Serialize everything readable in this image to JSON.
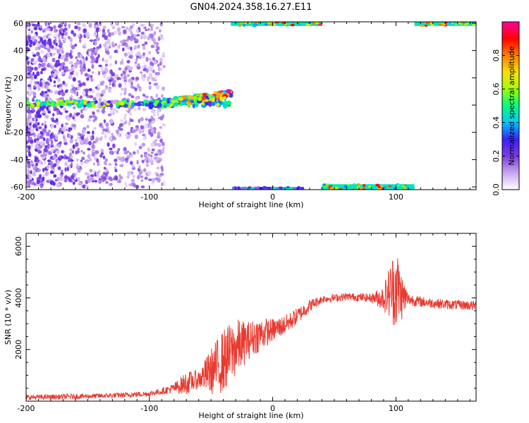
{
  "title": "GN04.2024.358.16.27.E11",
  "chart_data": [
    {
      "type": "heatmap",
      "xlabel": "Height of straight line (km)",
      "ylabel": "Frequency (Hz)",
      "xlim": [
        -200,
        165
      ],
      "ylim": [
        -62,
        61
      ],
      "x_ticks": [
        -200,
        -100,
        0,
        100
      ],
      "y_ticks": [
        -60,
        -40,
        -20,
        0,
        20,
        40,
        60
      ],
      "colorbar": {
        "label": "Normalized spectral amplitude",
        "range": [
          0,
          1
        ],
        "ticks": [
          0.0,
          0.2,
          0.4,
          0.6,
          0.8
        ],
        "colormap": [
          "#ffffff",
          "#c9a6f0",
          "#7b3ce0",
          "#3a20ff",
          "#00c8ff",
          "#00ff80",
          "#a0ff00",
          "#ffe000",
          "#ff8000",
          "#ff0000",
          "#ff00a0"
        ]
      },
      "features": [
        {
          "x": [
            -200,
            -88
          ],
          "y": [
            -60,
            60
          ],
          "amplitude": 0.2
        },
        {
          "x": [
            -200,
            -35
          ],
          "y": [
            -2,
            5
          ],
          "amplitude": 0.45
        },
        {
          "x": [
            -100,
            -33
          ],
          "y": [
            -2,
            14
          ],
          "amplitude": 0.7
        },
        {
          "x": [
            -34,
            40
          ],
          "y": [
            58,
            61
          ],
          "amplitude": 0.95
        },
        {
          "x": [
            115,
            165
          ],
          "y": [
            58,
            61
          ],
          "amplitude": 0.95
        },
        {
          "x": [
            -33,
            25
          ],
          "y": [
            -62,
            -60
          ],
          "amplitude": 0.35
        },
        {
          "x": [
            40,
            115
          ],
          "y": [
            -62,
            -58
          ],
          "amplitude": 0.95
        }
      ]
    },
    {
      "type": "line",
      "xlabel": "Height of straight line (km)",
      "ylabel": "SNR (10 * v/v)",
      "xlim": [
        -200,
        165
      ],
      "ylim": [
        0,
        6500
      ],
      "x_ticks": [
        -200,
        -100,
        0,
        100
      ],
      "y_ticks": [
        2000,
        4000,
        6000
      ],
      "color": "#e83a30",
      "x": [
        -200,
        -180,
        -160,
        -140,
        -120,
        -100,
        -90,
        -80,
        -70,
        -60,
        -50,
        -40,
        -30,
        -20,
        -10,
        0,
        10,
        20,
        30,
        40,
        60,
        80,
        90,
        95,
        100,
        105,
        110,
        120,
        140,
        165
      ],
      "y": [
        150,
        160,
        180,
        200,
        240,
        290,
        380,
        500,
        700,
        850,
        1150,
        1550,
        2050,
        2350,
        2600,
        2750,
        2950,
        3300,
        3700,
        3950,
        4050,
        4000,
        4000,
        4250,
        4450,
        4050,
        3950,
        3850,
        3750,
        3700
      ],
      "noise_amplitude": [
        100,
        100,
        100,
        100,
        100,
        110,
        120,
        200,
        450,
        350,
        900,
        1250,
        1150,
        750,
        650,
        450,
        380,
        320,
        250,
        150,
        150,
        170,
        500,
        1100,
        1700,
        900,
        250,
        200,
        190,
        190
      ]
    }
  ]
}
